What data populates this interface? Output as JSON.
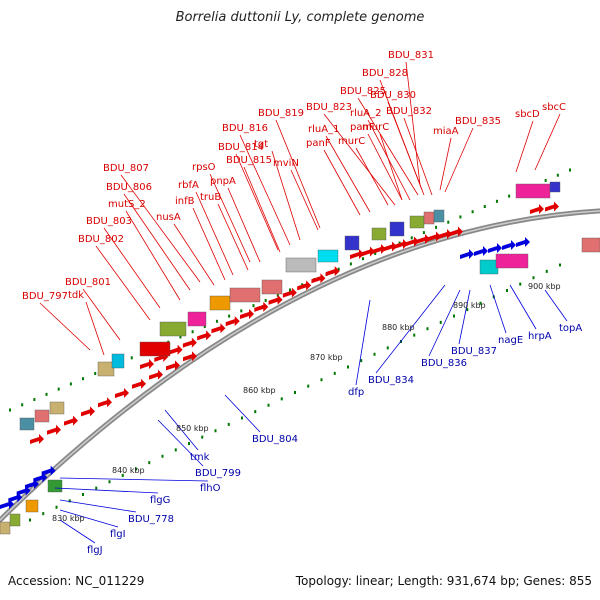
{
  "header": {
    "title": "Borrelia duttonii Ly, complete genome"
  },
  "footer": {
    "accession": "Accession: NC_011229",
    "summary": "Topology: linear; Length: 931,674 bp; Genes: 855"
  },
  "colors": {
    "forward": "#e00000",
    "reverse": "#0000dd",
    "backbone": "#888888",
    "tick": "#007700",
    "label_fwd": "#d80000",
    "label_rev": "#0000aa"
  },
  "kbp_ticks": [
    "830 kbp",
    "840 kbp",
    "850 kbp",
    "860 kbp",
    "870 kbp",
    "880 kbp",
    "890 kbp",
    "900 kbp"
  ],
  "forward_labels": [
    "BDU_831",
    "BDU_828",
    "BDU_825",
    "BDU_830",
    "rluA_2",
    "BDU_823",
    "BDU_832",
    "BDU_819",
    "rluA_1",
    "panF",
    "murC",
    "BDU_835",
    "sbcD",
    "sbcC",
    "miaA",
    "BDU_816",
    "murC",
    "panF",
    "tgt",
    "BDU_814",
    "BDU_815",
    "rpsO",
    "mviN",
    "pnpA",
    "BDU_807",
    "rbfA",
    "BDU_806",
    "infB",
    "truB",
    "mutS_2",
    "nusA",
    "BDU_803",
    "BDU_802",
    "BDU_801",
    "tdk",
    "BDU_797"
  ],
  "reverse_labels": [
    "topA",
    "hrpA",
    "nagE",
    "BDU_837",
    "BDU_836",
    "BDU_834",
    "dfp",
    "BDU_804",
    "tmk",
    "BDU_799",
    "flhO",
    "flgG",
    "BDU_778",
    "flgI",
    "flgJ"
  ]
}
